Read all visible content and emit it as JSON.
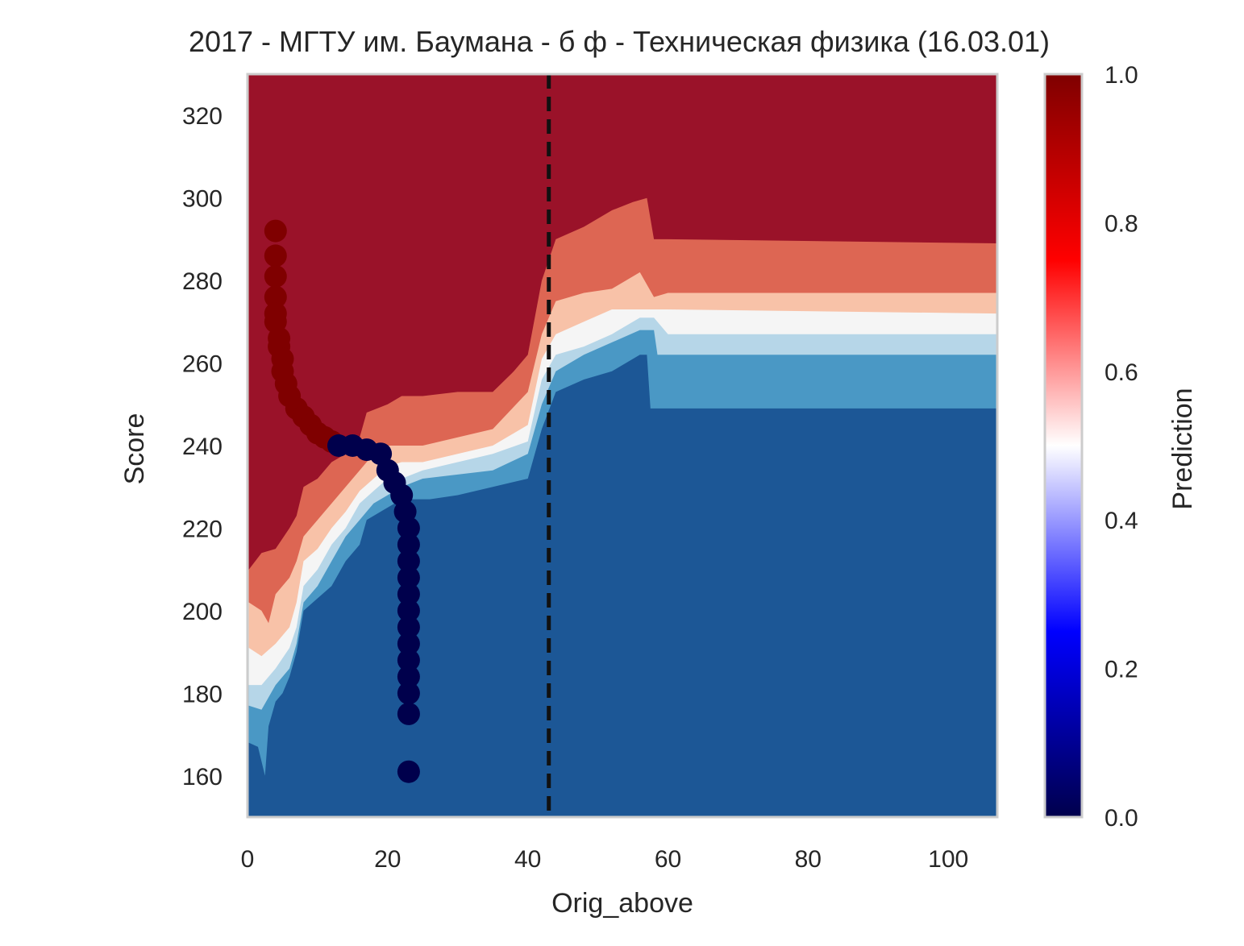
{
  "chart_data": {
    "type": "contour",
    "title": "2017 - МГТУ им. Баумана - б ф - Техническая физика (16.03.01)",
    "xlabel": "Orig_above",
    "ylabel": "Score",
    "xlim": [
      0,
      107
    ],
    "ylim": [
      150,
      330
    ],
    "xticks": [
      0,
      20,
      40,
      60,
      80,
      100
    ],
    "yticks": [
      160,
      180,
      200,
      220,
      240,
      260,
      280,
      300,
      320
    ],
    "grid": false,
    "vline": {
      "x": 43,
      "style": "dashed",
      "color": "#111111"
    },
    "contour_levels": [
      {
        "range": "0.0-0.2",
        "color": "#1c5796"
      },
      {
        "range": "0.2-0.3",
        "color": "#4a98c5"
      },
      {
        "range": "0.3-0.4",
        "color": "#b6d6e8"
      },
      {
        "range": "0.4-0.6",
        "color": "#f5f5f5"
      },
      {
        "range": "0.6-0.7",
        "color": "#f8c2a8"
      },
      {
        "range": "0.7-0.8",
        "color": "#dd6653"
      },
      {
        "range": "0.8-1.0",
        "color": "#9a1229"
      }
    ],
    "boundaries": [
      {
        "name": "b1",
        "points": [
          [
            0.2,
            168
          ],
          [
            1.5,
            167
          ],
          [
            2.5,
            160
          ],
          [
            3,
            172
          ],
          [
            4,
            178
          ],
          [
            5,
            180
          ],
          [
            6,
            184
          ],
          [
            7,
            190
          ],
          [
            8,
            200
          ],
          [
            10,
            203
          ],
          [
            12,
            206
          ],
          [
            14,
            212
          ],
          [
            16,
            216
          ],
          [
            17,
            222
          ],
          [
            19,
            224
          ],
          [
            21,
            226
          ],
          [
            22,
            226
          ],
          [
            23,
            227
          ],
          [
            26,
            227
          ],
          [
            30,
            228
          ],
          [
            35,
            230
          ],
          [
            40,
            232
          ],
          [
            42,
            244
          ],
          [
            44,
            253
          ],
          [
            48,
            256
          ],
          [
            52,
            258
          ],
          [
            56,
            262
          ],
          [
            57,
            262
          ],
          [
            57.5,
            249
          ],
          [
            60,
            249
          ],
          [
            107,
            249
          ]
        ]
      },
      {
        "name": "b2",
        "points": [
          [
            0.2,
            177
          ],
          [
            2,
            176
          ],
          [
            4,
            182
          ],
          [
            6,
            186
          ],
          [
            7,
            192
          ],
          [
            8,
            202
          ],
          [
            10,
            206
          ],
          [
            12,
            212
          ],
          [
            14,
            218
          ],
          [
            16,
            222
          ],
          [
            18,
            226
          ],
          [
            20,
            228
          ],
          [
            22,
            230
          ],
          [
            25,
            232
          ],
          [
            30,
            233
          ],
          [
            35,
            234
          ],
          [
            40,
            238
          ],
          [
            42,
            250
          ],
          [
            44,
            258
          ],
          [
            48,
            262
          ],
          [
            52,
            265
          ],
          [
            56,
            268
          ],
          [
            58,
            268
          ],
          [
            58.5,
            262
          ],
          [
            60,
            262
          ],
          [
            107,
            262
          ]
        ]
      },
      {
        "name": "b3",
        "points": [
          [
            0.2,
            182
          ],
          [
            2,
            182
          ],
          [
            4,
            186
          ],
          [
            6,
            191
          ],
          [
            7,
            196
          ],
          [
            8,
            206
          ],
          [
            10,
            210
          ],
          [
            12,
            216
          ],
          [
            14,
            220
          ],
          [
            16,
            226
          ],
          [
            18,
            229
          ],
          [
            20,
            232
          ],
          [
            22,
            232
          ],
          [
            25,
            234
          ],
          [
            30,
            236
          ],
          [
            35,
            238
          ],
          [
            40,
            241
          ],
          [
            42,
            256
          ],
          [
            44,
            262
          ],
          [
            48,
            264
          ],
          [
            52,
            267
          ],
          [
            56,
            271
          ],
          [
            58,
            271
          ],
          [
            60,
            267
          ],
          [
            107,
            267
          ]
        ]
      },
      {
        "name": "b4",
        "points": [
          [
            0.2,
            191
          ],
          [
            2,
            189
          ],
          [
            4,
            192
          ],
          [
            6,
            196
          ],
          [
            7,
            202
          ],
          [
            8,
            212
          ],
          [
            10,
            215
          ],
          [
            12,
            220
          ],
          [
            14,
            224
          ],
          [
            16,
            229
          ],
          [
            18,
            232
          ],
          [
            20,
            235
          ],
          [
            22,
            236
          ],
          [
            25,
            236
          ],
          [
            30,
            238
          ],
          [
            35,
            240
          ],
          [
            40,
            245
          ],
          [
            42,
            261
          ],
          [
            44,
            267
          ],
          [
            48,
            270
          ],
          [
            52,
            273
          ],
          [
            56,
            273
          ],
          [
            58,
            273
          ],
          [
            60,
            273
          ],
          [
            107,
            272
          ]
        ]
      },
      {
        "name": "b5",
        "points": [
          [
            0.2,
            202
          ],
          [
            2,
            200
          ],
          [
            3,
            197
          ],
          [
            4,
            204
          ],
          [
            6,
            208
          ],
          [
            7,
            212
          ],
          [
            8,
            218
          ],
          [
            10,
            222
          ],
          [
            12,
            226
          ],
          [
            14,
            230
          ],
          [
            16,
            234
          ],
          [
            18,
            238
          ],
          [
            20,
            240
          ],
          [
            22,
            240
          ],
          [
            25,
            240
          ],
          [
            30,
            242
          ],
          [
            35,
            244
          ],
          [
            40,
            253
          ],
          [
            42,
            267
          ],
          [
            44,
            275
          ],
          [
            48,
            277
          ],
          [
            52,
            278
          ],
          [
            56,
            282
          ],
          [
            58,
            276
          ],
          [
            60,
            277
          ],
          [
            107,
            277
          ]
        ]
      },
      {
        "name": "b6",
        "points": [
          [
            0.2,
            210
          ],
          [
            2,
            214
          ],
          [
            4,
            215
          ],
          [
            6,
            220
          ],
          [
            7,
            223
          ],
          [
            8,
            230
          ],
          [
            10,
            232
          ],
          [
            12,
            236
          ],
          [
            14,
            238
          ],
          [
            16,
            242
          ],
          [
            17,
            248
          ],
          [
            20,
            250
          ],
          [
            22,
            252
          ],
          [
            25,
            252
          ],
          [
            30,
            253
          ],
          [
            35,
            253
          ],
          [
            38,
            258
          ],
          [
            40,
            262
          ],
          [
            42,
            280
          ],
          [
            44,
            290
          ],
          [
            48,
            293
          ],
          [
            52,
            297
          ],
          [
            55,
            299
          ],
          [
            57,
            300
          ],
          [
            58,
            290
          ],
          [
            60,
            290
          ],
          [
            107,
            289
          ]
        ]
      }
    ],
    "points_high": {
      "series": "Prediction 1.0",
      "color": "#7f0000",
      "x": [
        4,
        4,
        4,
        4,
        4,
        4,
        4.5,
        4.5,
        5,
        5,
        5.5,
        6,
        7,
        8,
        9,
        10,
        11,
        12
      ],
      "y": [
        292,
        286,
        281,
        276,
        272,
        270,
        266,
        264,
        261,
        258,
        255,
        252,
        249,
        247,
        245,
        243,
        242,
        241
      ]
    },
    "points_low": {
      "series": "Prediction 0.0",
      "color": "#00004c",
      "x": [
        13,
        15,
        17,
        19,
        20,
        21,
        22,
        22.5,
        23,
        23,
        23,
        23,
        23,
        23,
        23,
        23,
        23,
        23,
        23,
        23,
        23
      ],
      "y": [
        240,
        240,
        239,
        238,
        234,
        231,
        228,
        224,
        220,
        216,
        212,
        208,
        204,
        200,
        196,
        192,
        188,
        184,
        180,
        175,
        161
      ]
    },
    "colorbar": {
      "label": "Prediction",
      "min": 0.0,
      "max": 1.0,
      "ticks": [
        "0.0",
        "0.2",
        "0.4",
        "0.6",
        "0.8",
        "1.0"
      ],
      "stops": [
        {
          "pos": 0.0,
          "color": "#00004c"
        },
        {
          "pos": 0.25,
          "color": "#0000ff"
        },
        {
          "pos": 0.5,
          "color": "#ffffff"
        },
        {
          "pos": 0.75,
          "color": "#ff0000"
        },
        {
          "pos": 1.0,
          "color": "#7f0000"
        }
      ]
    }
  }
}
